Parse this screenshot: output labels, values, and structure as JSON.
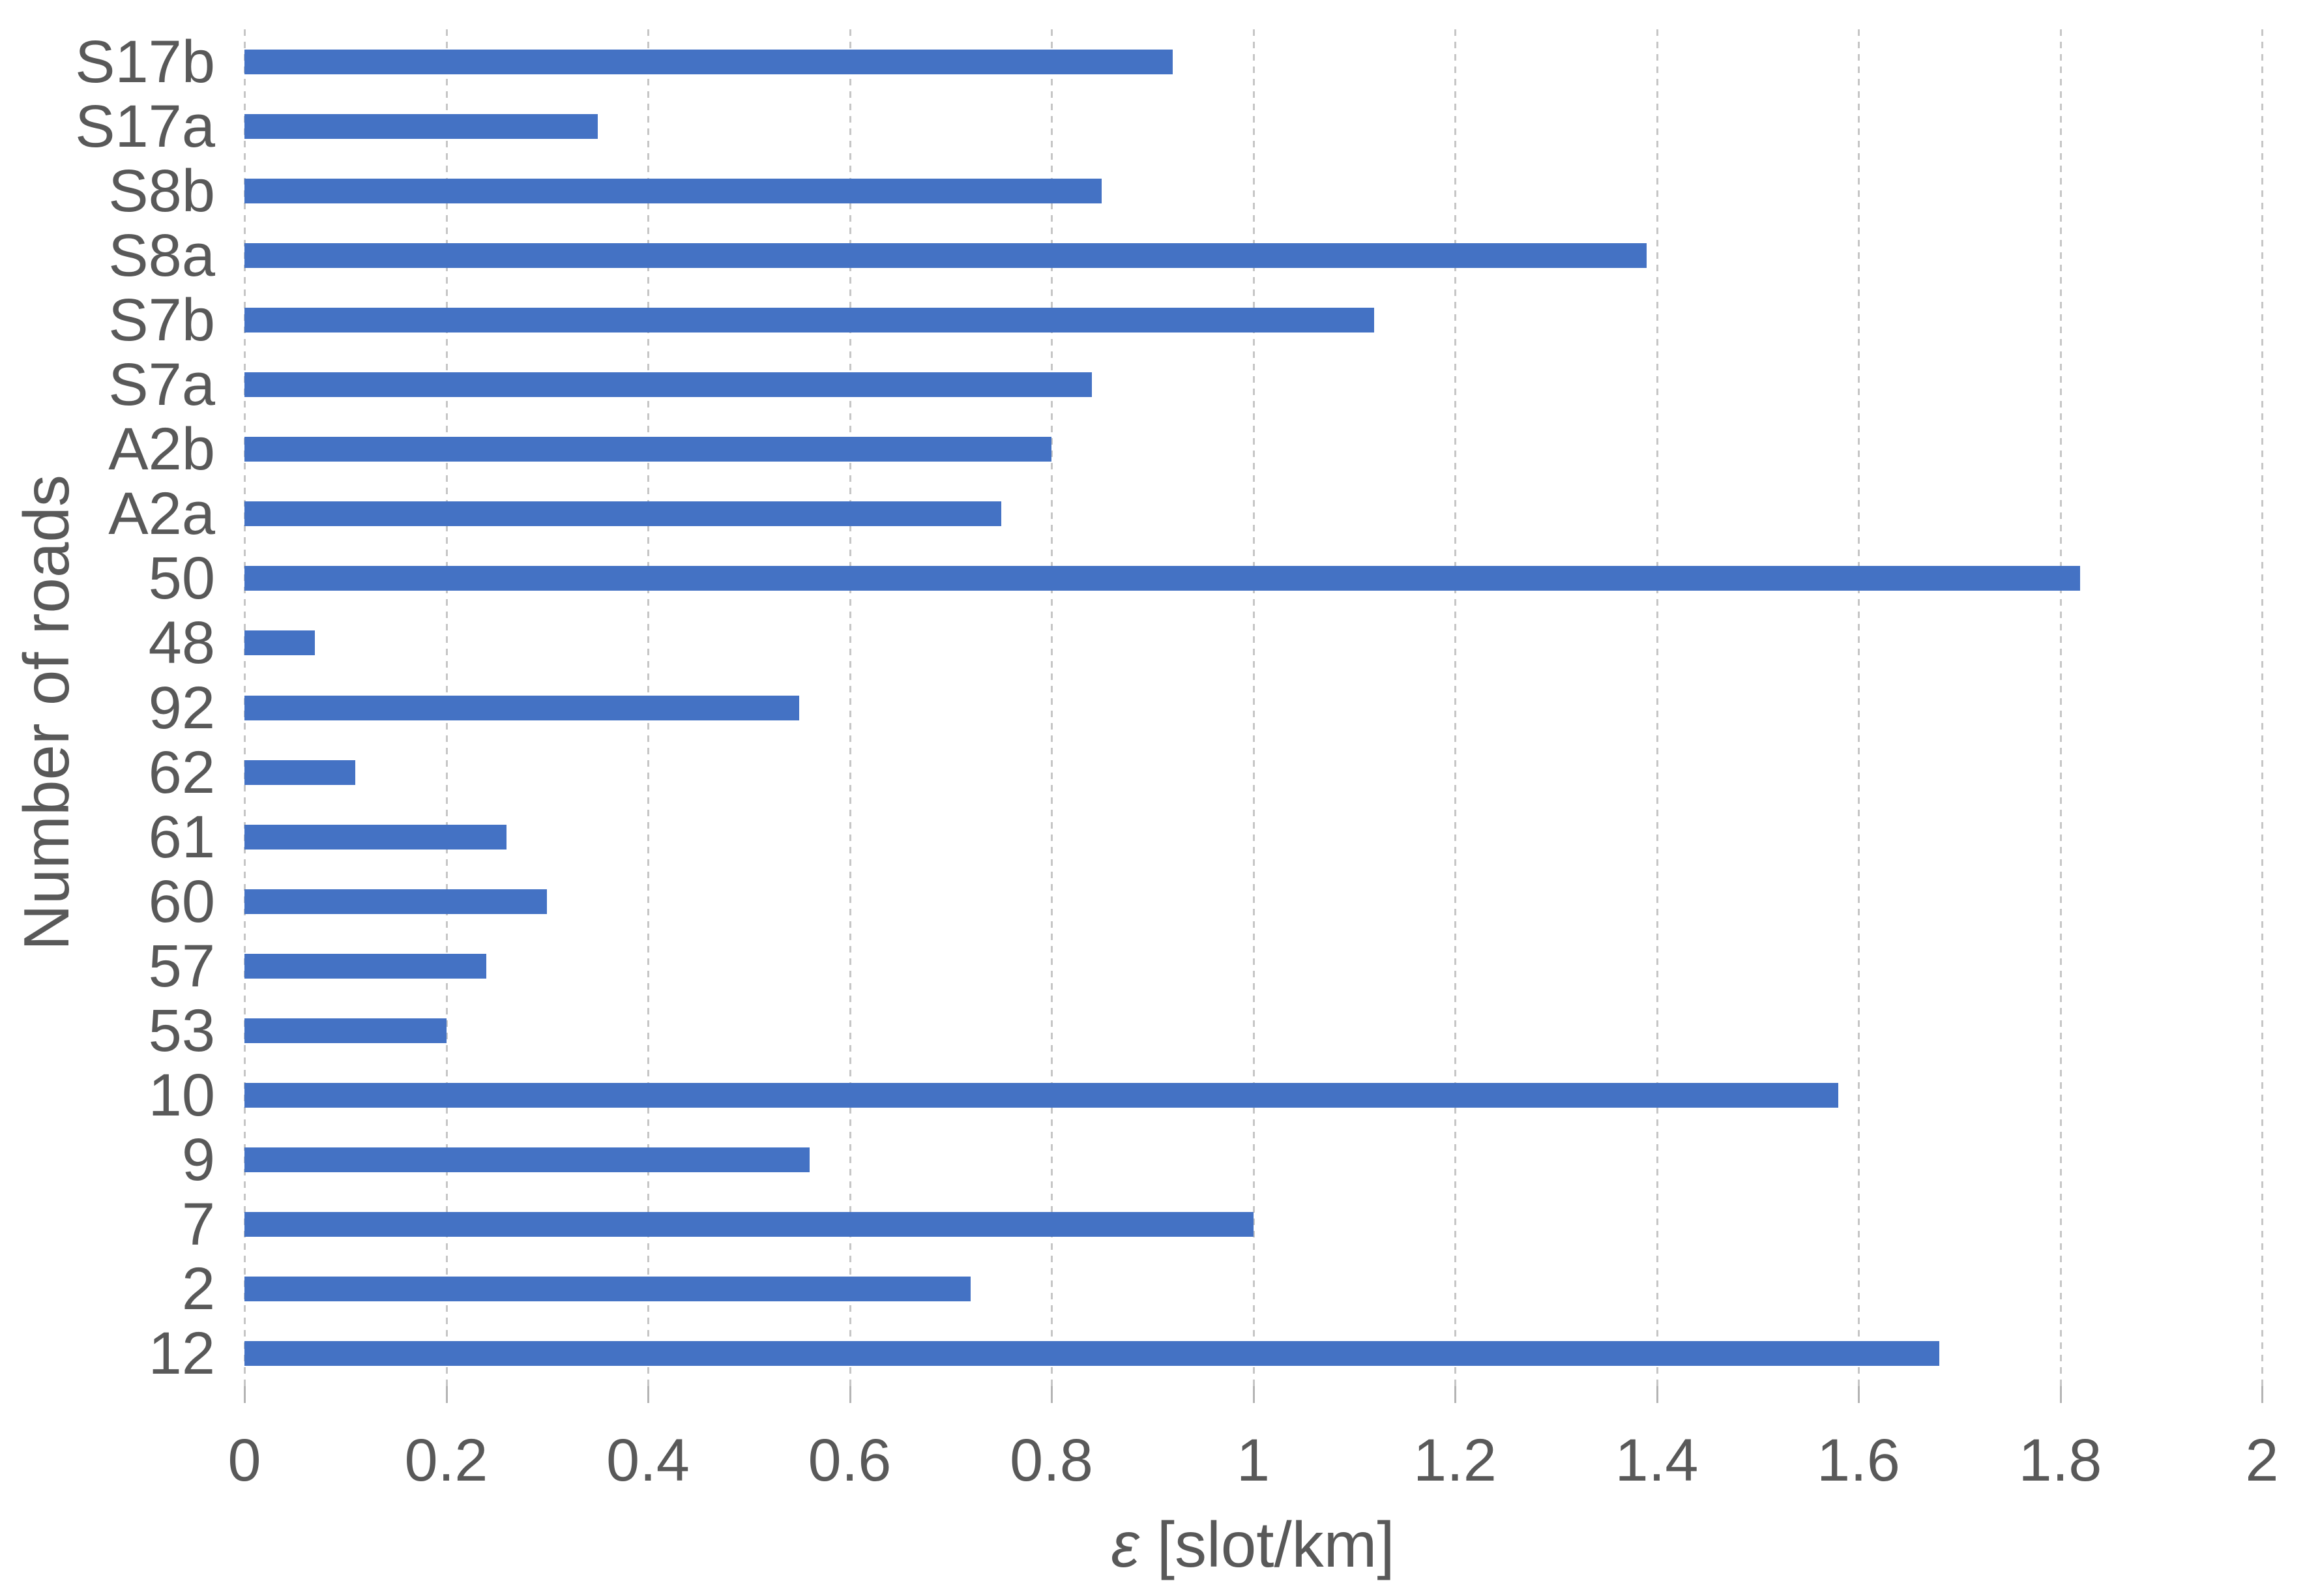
{
  "chart_data": {
    "type": "bar",
    "orientation": "horizontal",
    "title": "",
    "xlabel_symbol": "ε",
    "xlabel_unit": " [slot/km]",
    "ylabel": "Number of roads",
    "categories": [
      "S17b",
      "S17a",
      "S8b",
      "S8a",
      "S7b",
      "S7a",
      "A2b",
      "A2a",
      "50",
      "48",
      "92",
      "62",
      "61",
      "60",
      "57",
      "53",
      "10",
      "9",
      "7",
      "2",
      "12"
    ],
    "values": [
      0.92,
      0.35,
      0.85,
      1.39,
      1.12,
      0.84,
      0.8,
      0.75,
      1.82,
      0.07,
      0.55,
      0.11,
      0.26,
      0.3,
      0.24,
      0.2,
      1.58,
      0.56,
      1.0,
      0.72,
      1.68
    ],
    "xlim": [
      0,
      2
    ],
    "xticks": [
      0,
      0.2,
      0.4,
      0.6,
      0.8,
      1,
      1.2,
      1.4,
      1.6,
      1.8,
      2
    ],
    "xtick_labels": [
      "0",
      "0.2",
      "0.4",
      "0.6",
      "0.8",
      "1",
      "1.2",
      "1.4",
      "1.6",
      "1.8",
      "2"
    ],
    "grid": "vertical-dashed",
    "legend": "none",
    "bar_color": "#4472C4",
    "grid_color": "#C6C6C6",
    "text_color": "#595959"
  }
}
